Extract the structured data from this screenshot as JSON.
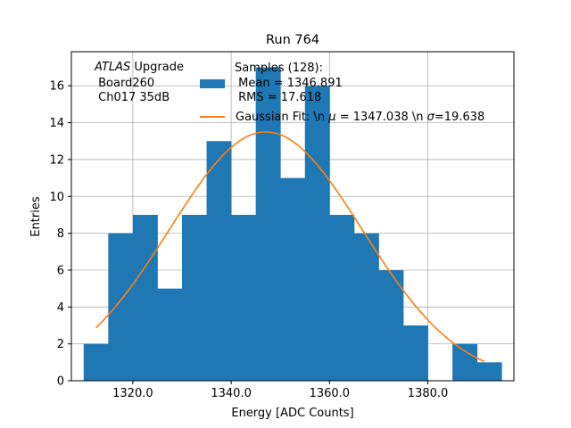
{
  "chart_data": {
    "type": "bar",
    "title": "Run 764",
    "xlabel": "Energy [ADC Counts]",
    "ylabel": "Entries",
    "xlim": [
      1307.5,
      1397.5
    ],
    "ylim": [
      0,
      17.85
    ],
    "grid": true,
    "x_ticks": [
      1320,
      1340,
      1360,
      1380
    ],
    "x_tick_labels": [
      "1320.0",
      "1340.0",
      "1360.0",
      "1380.0"
    ],
    "y_ticks": [
      0,
      2,
      4,
      6,
      8,
      10,
      12,
      14,
      16
    ],
    "y_tick_labels": [
      "0",
      "2",
      "4",
      "6",
      "8",
      "10",
      "12",
      "14",
      "16"
    ],
    "bin_width": 5,
    "bin_edges_start": 1310,
    "counts": [
      2,
      8,
      9,
      5,
      9,
      13,
      9,
      17,
      11,
      16,
      9,
      8,
      6,
      3,
      0,
      2,
      1
    ],
    "fit": {
      "mu": 1347.038,
      "sigma": 19.638,
      "amplitude": 13.5,
      "x_range": [
        1312.5,
        1391.5
      ]
    },
    "colors": {
      "bars": "#1f77b4",
      "fit": "#ff7f0e",
      "grid": "#b0b0b0"
    },
    "annotation": {
      "italic": "ATLAS",
      "line1_rest": " Upgrade",
      "line2": " Board260",
      "line3": " Ch017 35dB"
    },
    "legend": {
      "position": "top-right",
      "hist_label_line1": "Samples (128):",
      "hist_label_line2": " Mean = 1346.891",
      "hist_label_line3": " RMS = 17.618",
      "fit_label_prefix": "Gaussian Fit: \\n ",
      "fit_label_mu_sym": "μ",
      "fit_label_mid": " = 1347.038 \\n ",
      "fit_label_sigma_sym": "σ",
      "fit_label_end": "=19.638"
    }
  }
}
